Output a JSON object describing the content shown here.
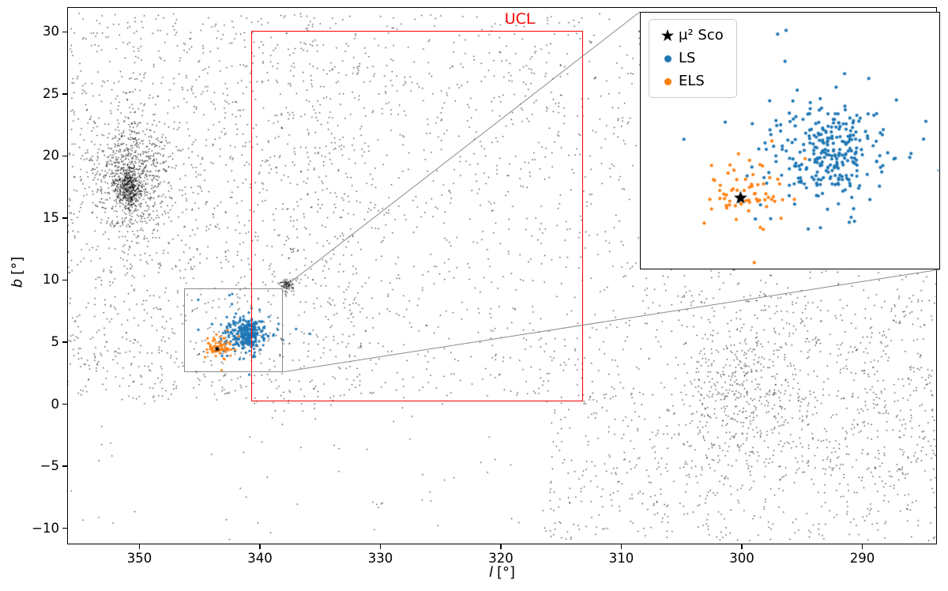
{
  "figure": {
    "background": "#ffffff"
  },
  "chart_data": {
    "type": "scatter",
    "title": "",
    "xlabel": {
      "var": "l",
      "unit": "[°]"
    },
    "ylabel": {
      "var": "b",
      "unit": "[°]"
    },
    "xlim": [
      356.0,
      283.8
    ],
    "ylim": [
      -11.3,
      32.0
    ],
    "x_axis_reversed": true,
    "grid": false,
    "xticks": [
      350,
      340,
      330,
      320,
      310,
      300,
      290
    ],
    "yticks": [
      -10,
      -5,
      0,
      5,
      10,
      15,
      20,
      25,
      30
    ],
    "legend": {
      "position": "inset top-left",
      "entries": [
        {
          "label": "μ² Sco",
          "marker": "star",
          "glyph": "★",
          "color": "#000000"
        },
        {
          "label": "LS",
          "marker": "dot",
          "color": "#1f77b4"
        },
        {
          "label": "ELS",
          "marker": "dot",
          "color": "#ff7f0e"
        }
      ]
    },
    "annotations": {
      "ucl_box": {
        "label": "UCL",
        "color": "#ff0000",
        "l_range": [
          340.7,
          313.2
        ],
        "b_range": [
          0.25,
          30.1
        ]
      },
      "zoom_box": {
        "color": "#8a8a8a",
        "l_range": [
          346.3,
          338.1
        ],
        "b_range": [
          2.6,
          9.35
        ]
      }
    },
    "series": {
      "field": {
        "name": "field stars",
        "color": "#000000",
        "marker_size_px": 1.3,
        "uniform_regions": [
          {
            "l": [
              356.0,
              283.8
            ],
            "b": [
              0.5,
              31.5
            ],
            "n": 2600
          },
          {
            "l": [
              356.0,
              332.0
            ],
            "b": [
              0.0,
              31.5
            ],
            "n": 800
          },
          {
            "l": [
              316.0,
              283.8
            ],
            "b": [
              -11.0,
              1.0
            ],
            "n": 650
          },
          {
            "l": [
              305.0,
              283.8
            ],
            "b": [
              -6.0,
              9.0
            ],
            "n": 350
          },
          {
            "l": [
              356.0,
              316.0
            ],
            "b": [
              -11.0,
              0.5
            ],
            "n": 70
          }
        ],
        "clusters": [
          {
            "center": [
              350.9,
              17.3
            ],
            "sigma": [
              0.55,
              0.8
            ],
            "n": 350
          },
          {
            "center": [
              350.6,
              18.5
            ],
            "sigma": [
              1.5,
              2.4
            ],
            "n": 750
          },
          {
            "center": [
              337.7,
              9.6
            ],
            "sigma": [
              0.28,
              0.28
            ],
            "n": 85
          },
          {
            "center": [
              299.5,
              0.8
            ],
            "sigma": [
              2.8,
              2.6
            ],
            "n": 280
          }
        ]
      },
      "ls": {
        "name": "LS",
        "color": "#1f77b4",
        "components": [
          {
            "center": [
              341.1,
              5.7
            ],
            "sigma": [
              0.6,
              0.55
            ],
            "n": 210
          },
          {
            "center": [
              341.2,
              5.6
            ],
            "sigma": [
              1.35,
              1.05
            ],
            "n": 95
          }
        ]
      },
      "els": {
        "name": "ELS",
        "color": "#ff7f0e",
        "components": [
          {
            "center": [
              343.35,
              4.55
            ],
            "sigma": [
              0.5,
              0.4
            ],
            "n": 52
          },
          {
            "center": [
              343.3,
              4.6
            ],
            "sigma": [
              1.0,
              0.85
            ],
            "n": 14
          }
        ]
      },
      "mu2_sco": {
        "name": "μ² Sco",
        "color": "#000000",
        "marker": "star",
        "l": 343.55,
        "b": 4.45
      }
    }
  }
}
